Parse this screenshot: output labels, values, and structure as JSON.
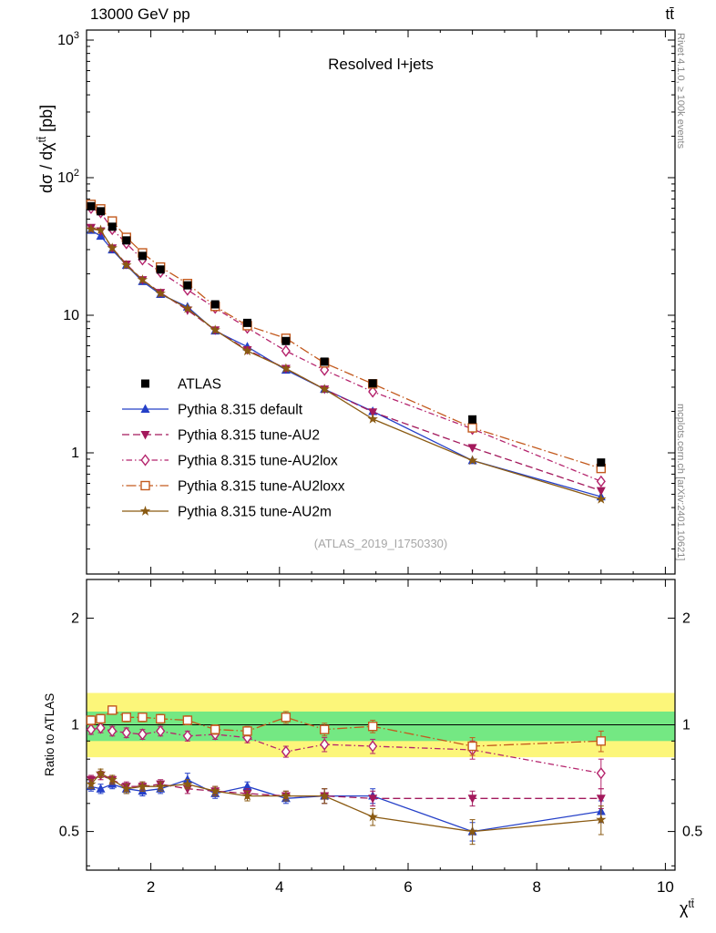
{
  "header": {
    "left": "13000 GeV pp",
    "right": "tt̄"
  },
  "right_margin": {
    "top": "Rivet 4.1.0, ≥ 100k events",
    "bottom": "mcplots.cern.ch [arXiv:2401.10621]"
  },
  "top_panel": {
    "title": "Resolved l+jets",
    "ylabel_prefix": "dσ / dχ",
    "ylabel_sup": "tt̄",
    "ylabel_suffix": " [pb]",
    "watermark": "(ATLAS_2019_I1750330)"
  },
  "bottom_panel": {
    "ylabel": "Ratio to ATLAS"
  },
  "x_axis": {
    "label_base": "χ",
    "label_sup": "tt̄"
  },
  "axes": {
    "x_major": [
      2,
      4,
      6,
      8,
      10
    ],
    "main_y_major": [
      1,
      10,
      100,
      1000
    ],
    "ratio_y_major": [
      0.5,
      1,
      2
    ]
  },
  "chart_data": [
    {
      "type": "line",
      "panel": "main",
      "title": "Resolved l+jets",
      "xlabel": "chi_ttbar",
      "ylabel": "dsigma/dchi_ttbar [pb]",
      "yscale": "log",
      "xlim": [
        1,
        10.15
      ],
      "ylim": [
        0.13,
        1200
      ],
      "legend_position": "middle-left",
      "grid": false,
      "x": [
        1.07,
        1.22,
        1.4,
        1.62,
        1.87,
        2.15,
        2.57,
        3.0,
        3.5,
        4.1,
        4.7,
        5.45,
        7.0,
        9.0
      ],
      "series": [
        {
          "id": "atlas",
          "name": "ATLAS",
          "color": "#000000",
          "marker": "square",
          "line": "none",
          "values": [
            62,
            57,
            44,
            35,
            27,
            21.5,
            16.5,
            12,
            8.8,
            6.5,
            4.6,
            3.2,
            1.75,
            0.85
          ]
        },
        {
          "id": "pythia-default",
          "name": "Pythia 8.315 default",
          "color": "#2540c8",
          "marker": "triangle-up",
          "line": "solid",
          "values": [
            41.5,
            37.6,
            29.9,
            23.1,
            17.6,
            14.2,
            11.5,
            7.7,
            5.9,
            4.0,
            2.9,
            2.0,
            0.88,
            0.48
          ]
        },
        {
          "id": "tune-au2",
          "name": "Pythia 8.315 tune-AU2",
          "color": "#a3195c",
          "marker": "triangle-down",
          "line": "dashed",
          "values": [
            43.4,
            41.0,
            30.8,
            23.5,
            18.1,
            14.6,
            10.9,
            7.8,
            5.6,
            4.1,
            2.9,
            1.98,
            1.09,
            0.53
          ]
        },
        {
          "id": "tune-au2lox",
          "name": "Pythia 8.315 tune-AU2lox",
          "color": "#b5246d",
          "marker": "diamond-open",
          "line": "dashdot",
          "values": [
            60.1,
            55.9,
            42.2,
            33.3,
            25.4,
            20.6,
            15.3,
            11.3,
            8.1,
            5.5,
            4.0,
            2.78,
            1.49,
            0.62
          ]
        },
        {
          "id": "tune-au2loxx",
          "name": "Pythia 8.315 tune-AU2loxx",
          "color": "#c35a1e",
          "marker": "square-open",
          "line": "dashdot2",
          "values": [
            63.9,
            59.3,
            48.4,
            36.8,
            28.4,
            22.4,
            17.0,
            11.6,
            8.4,
            6.8,
            4.5,
            3.17,
            1.52,
            0.77
          ]
        },
        {
          "id": "tune-au2m",
          "name": "Pythia 8.315 tune-AU2m",
          "color": "#8a5a12",
          "marker": "star",
          "line": "solid",
          "values": [
            42.2,
            41.6,
            30.8,
            23.1,
            18.1,
            14.4,
            11.2,
            7.8,
            5.5,
            4.1,
            2.9,
            1.76,
            0.88,
            0.46
          ]
        }
      ]
    },
    {
      "type": "line",
      "panel": "ratio",
      "ylabel": "Ratio to ATLAS",
      "yscale": "log",
      "xlim": [
        1,
        10.15
      ],
      "ylim": [
        0.39,
        2.6
      ],
      "reference_line": 1,
      "bands": [
        {
          "name": "outer-yellow",
          "color": "#fcf67a",
          "lo": 0.81,
          "hi": 1.23
        },
        {
          "name": "inner-green",
          "color": "#74e883",
          "lo": 0.9,
          "hi": 1.09
        }
      ],
      "x": [
        1.07,
        1.22,
        1.4,
        1.62,
        1.87,
        2.15,
        2.57,
        3.0,
        3.5,
        4.1,
        4.7,
        5.45,
        7.0,
        9.0
      ],
      "series": [
        {
          "id": "pythia-default",
          "name": "Pythia 8.315 default",
          "color": "#2540c8",
          "marker": "triangle-up",
          "line": "solid",
          "values": [
            0.67,
            0.66,
            0.68,
            0.66,
            0.65,
            0.66,
            0.7,
            0.64,
            0.67,
            0.62,
            0.63,
            0.63,
            0.5,
            0.57
          ],
          "err": [
            0.02,
            0.02,
            0.02,
            0.02,
            0.02,
            0.02,
            0.03,
            0.02,
            0.02,
            0.02,
            0.03,
            0.03,
            0.03,
            0.04
          ]
        },
        {
          "id": "tune-au2",
          "name": "Pythia 8.315 tune-AU2",
          "color": "#a3195c",
          "marker": "triangle-down",
          "line": "dashed",
          "values": [
            0.7,
            0.72,
            0.7,
            0.67,
            0.67,
            0.68,
            0.66,
            0.65,
            0.64,
            0.63,
            0.63,
            0.62,
            0.62,
            0.62
          ],
          "err": [
            0.02,
            0.02,
            0.02,
            0.02,
            0.02,
            0.02,
            0.02,
            0.02,
            0.02,
            0.02,
            0.03,
            0.03,
            0.03,
            0.04
          ]
        },
        {
          "id": "tune-au2lox",
          "name": "Pythia 8.315 tune-AU2lox",
          "color": "#b5246d",
          "marker": "diamond-open",
          "line": "dashdot",
          "values": [
            0.97,
            0.98,
            0.96,
            0.95,
            0.94,
            0.96,
            0.93,
            0.94,
            0.92,
            0.84,
            0.88,
            0.87,
            0.85,
            0.73
          ],
          "err": [
            0.03,
            0.03,
            0.03,
            0.03,
            0.03,
            0.03,
            0.03,
            0.03,
            0.03,
            0.03,
            0.04,
            0.04,
            0.05,
            0.07
          ]
        },
        {
          "id": "tune-au2loxx",
          "name": "Pythia 8.315 tune-AU2loxx",
          "color": "#c35a1e",
          "marker": "square-open",
          "line": "dashdot2",
          "values": [
            1.03,
            1.04,
            1.1,
            1.05,
            1.05,
            1.04,
            1.03,
            0.97,
            0.96,
            1.05,
            0.97,
            0.99,
            0.87,
            0.9
          ],
          "err": [
            0.03,
            0.03,
            0.03,
            0.03,
            0.03,
            0.03,
            0.03,
            0.03,
            0.03,
            0.04,
            0.04,
            0.04,
            0.05,
            0.06
          ]
        },
        {
          "id": "tune-au2m",
          "name": "Pythia 8.315 tune-AU2m",
          "color": "#8a5a12",
          "marker": "star",
          "line": "solid",
          "values": [
            0.68,
            0.73,
            0.7,
            0.66,
            0.67,
            0.67,
            0.68,
            0.65,
            0.63,
            0.63,
            0.63,
            0.55,
            0.5,
            0.54
          ],
          "err": [
            0.02,
            0.02,
            0.02,
            0.02,
            0.02,
            0.02,
            0.02,
            0.02,
            0.02,
            0.02,
            0.03,
            0.03,
            0.04,
            0.05
          ]
        }
      ]
    }
  ]
}
